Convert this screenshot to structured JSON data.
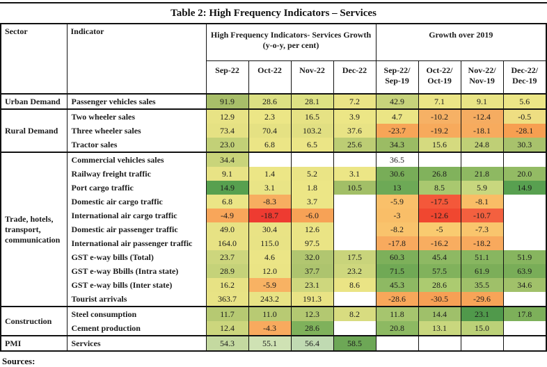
{
  "title": "Table 2: High Frequency Indicators – Services",
  "sources_label": "Sources:",
  "table": {
    "col_headers": {
      "sector": "Sector",
      "indicator": "Indicator",
      "group1_line1": "High Frequency Indicators- Services Growth",
      "group1_line2": "(y-o-y, per cent)",
      "group2": "Growth over 2019",
      "months": [
        "Sep-22",
        "Oct-22",
        "Nov-22",
        "Dec-22"
      ],
      "growth_cols": [
        [
          "Sep-22/",
          "Sep-19"
        ],
        [
          "Oct-22/",
          "Oct-19"
        ],
        [
          "Nov-22/",
          "Nov-19"
        ],
        [
          "Dec-22/",
          "Dec-19"
        ]
      ]
    },
    "groups": [
      {
        "sector": "Urban Demand",
        "rows": [
          {
            "indicator": "Passenger vehicles sales",
            "cells": [
              {
                "v": "91.9",
                "c": "#a8be69"
              },
              {
                "v": "28.6",
                "c": "#dce083"
              },
              {
                "v": "28.1",
                "c": "#dde183"
              },
              {
                "v": "7.2",
                "c": "#eae486"
              },
              {
                "v": "42.9",
                "c": "#c7d37b"
              },
              {
                "v": "7.1",
                "c": "#ebe586"
              },
              {
                "v": "9.1",
                "c": "#e9e485"
              },
              {
                "v": "5.6",
                "c": "#ece686"
              }
            ]
          }
        ]
      },
      {
        "sector": "Rural Demand",
        "rows": [
          {
            "indicator": "Two wheeler sales",
            "cells": [
              {
                "v": "12.9",
                "c": "#e8e385"
              },
              {
                "v": "2.3",
                "c": "#ece686"
              },
              {
                "v": "16.5",
                "c": "#e6e284"
              },
              {
                "v": "3.9",
                "c": "#ece686"
              },
              {
                "v": "4.7",
                "c": "#ebe585"
              },
              {
                "v": "-10.2",
                "c": "#f6b165"
              },
              {
                "v": "-12.4",
                "c": "#f5ac61"
              },
              {
                "v": "-0.5",
                "c": "#eede82"
              }
            ]
          },
          {
            "indicator": "Three wheeler sales",
            "cells": [
              {
                "v": "73.4",
                "c": "#e5e183"
              },
              {
                "v": "70.4",
                "c": "#e5e183"
              },
              {
                "v": "103.2",
                "c": "#e1df82"
              },
              {
                "v": "37.6",
                "c": "#e8e385"
              },
              {
                "v": "-23.7",
                "c": "#f7a557"
              },
              {
                "v": "-19.2",
                "c": "#f7aa5c"
              },
              {
                "v": "-18.1",
                "c": "#f7ab5e"
              },
              {
                "v": "-28.1",
                "c": "#f79f51"
              }
            ]
          },
          {
            "indicator": "Tractor sales",
            "cells": [
              {
                "v": "23.0",
                "c": "#c2d077"
              },
              {
                "v": "6.8",
                "c": "#ebe586"
              },
              {
                "v": "6.5",
                "c": "#ebe586"
              },
              {
                "v": "25.6",
                "c": "#bccd74"
              },
              {
                "v": "34.3",
                "c": "#9bbc64"
              },
              {
                "v": "15.6",
                "c": "#d5da7f"
              },
              {
                "v": "24.8",
                "c": "#bfcf76"
              },
              {
                "v": "30.3",
                "c": "#a8c26c"
              }
            ]
          }
        ]
      },
      {
        "sector": "Trade, hotels, transport, communication",
        "rows": [
          {
            "indicator": "Commercial vehicles sales",
            "cells": [
              {
                "v": "34.4",
                "c": "#c9d47a"
              },
              {
                "v": "",
                "c": ""
              },
              {
                "v": "",
                "c": ""
              },
              {
                "v": "",
                "c": ""
              },
              {
                "v": "36.5",
                "c": ""
              },
              {
                "v": "",
                "c": ""
              },
              {
                "v": "",
                "c": ""
              },
              {
                "v": "",
                "c": ""
              }
            ]
          },
          {
            "indicator": "Railway freight traffic",
            "cells": [
              {
                "v": "9.1",
                "c": "#e8e385"
              },
              {
                "v": "1.4",
                "c": "#ece686"
              },
              {
                "v": "5.2",
                "c": "#eae485"
              },
              {
                "v": "3.1",
                "c": "#ece686"
              },
              {
                "v": "30.6",
                "c": "#78ad58"
              },
              {
                "v": "26.8",
                "c": "#81b25c"
              },
              {
                "v": "21.8",
                "c": "#8eb962"
              },
              {
                "v": "20.0",
                "c": "#93bb64"
              }
            ]
          },
          {
            "indicator": "Port cargo traffic",
            "cells": [
              {
                "v": "14.9",
                "c": "#57a04f"
              },
              {
                "v": "3.1",
                "c": "#e9e486"
              },
              {
                "v": "1.8",
                "c": "#ece686"
              },
              {
                "v": "10.5",
                "c": "#a2bf67"
              },
              {
                "v": "13",
                "c": "#6da956"
              },
              {
                "v": "8.5",
                "c": "#a9c86f"
              },
              {
                "v": "5.9",
                "c": "#c8d77e"
              },
              {
                "v": "14.9",
                "c": "#58a050"
              }
            ]
          },
          {
            "indicator": "Domestic air cargo traffic",
            "cells": [
              {
                "v": "6.8",
                "c": "#ebe586"
              },
              {
                "v": "-8.3",
                "c": "#f7ae60"
              },
              {
                "v": "3.7",
                "c": "#ece686"
              },
              {
                "v": "",
                "c": ""
              },
              {
                "v": "-5.9",
                "c": "#f9c06a"
              },
              {
                "v": "-17.5",
                "c": "#f4583a"
              },
              {
                "v": "-8.1",
                "c": "#f9bd66"
              },
              {
                "v": "",
                "c": ""
              }
            ]
          },
          {
            "indicator": "International air cargo traffic",
            "cells": [
              {
                "v": "-4.9",
                "c": "#f8a65a"
              },
              {
                "v": "-18.7",
                "c": "#ee3b31"
              },
              {
                "v": "-6.0",
                "c": "#f7a256"
              },
              {
                "v": "",
                "c": ""
              },
              {
                "v": "-3",
                "c": "#f9be68"
              },
              {
                "v": "-12.6",
                "c": "#f04730"
              },
              {
                "v": "-10.7",
                "c": "#f3603f"
              },
              {
                "v": "",
                "c": ""
              }
            ]
          },
          {
            "indicator": "Domestic air passenger traffic",
            "cells": [
              {
                "v": "49.0",
                "c": "#e7e284"
              },
              {
                "v": "30.4",
                "c": "#e9e385"
              },
              {
                "v": "12.6",
                "c": "#eae485"
              },
              {
                "v": "",
                "c": ""
              },
              {
                "v": "-8.2",
                "c": "#f9c36c"
              },
              {
                "v": "-5",
                "c": "#f9cb70"
              },
              {
                "v": "-7.3",
                "c": "#f9c56d"
              },
              {
                "v": "",
                "c": ""
              }
            ]
          },
          {
            "indicator": "International air passenger traffic",
            "cells": [
              {
                "v": "164.0",
                "c": "#e7e284"
              },
              {
                "v": "115.0",
                "c": "#e8e385"
              },
              {
                "v": "97.5",
                "c": "#eae485"
              },
              {
                "v": "",
                "c": ""
              },
              {
                "v": "-17.8",
                "c": "#f8aa5e"
              },
              {
                "v": "-16.2",
                "c": "#f8ad60"
              },
              {
                "v": "-18.2",
                "c": "#f8a95d"
              },
              {
                "v": "",
                "c": ""
              }
            ]
          },
          {
            "indicator": "GST e-way bills (Total)",
            "cells": [
              {
                "v": "23.7",
                "c": "#cdd67d"
              },
              {
                "v": "4.6",
                "c": "#ebe586"
              },
              {
                "v": "32.0",
                "c": "#b1c670"
              },
              {
                "v": "17.5",
                "c": "#c9d47b"
              },
              {
                "v": "60.3",
                "c": "#7db05a"
              },
              {
                "v": "45.4",
                "c": "#8eb963"
              },
              {
                "v": "51.1",
                "c": "#88b660"
              },
              {
                "v": "51.9",
                "c": "#87b55f"
              }
            ]
          },
          {
            "indicator": "GST e-way Bbills (Intra state)",
            "cells": [
              {
                "v": "28.9",
                "c": "#c5d279"
              },
              {
                "v": "12.0",
                "c": "#eae485"
              },
              {
                "v": "37.7",
                "c": "#adc46e"
              },
              {
                "v": "23.2",
                "c": "#ced77d"
              },
              {
                "v": "71.5",
                "c": "#70a955"
              },
              {
                "v": "57.5",
                "c": "#81b25c"
              },
              {
                "v": "61.9",
                "c": "#7cae59"
              },
              {
                "v": "63.9",
                "c": "#79ad58"
              }
            ]
          },
          {
            "indicator": "GST e-way bills (Inter state)",
            "cells": [
              {
                "v": "16.2",
                "c": "#e7e284"
              },
              {
                "v": "-5.9",
                "c": "#f8b263"
              },
              {
                "v": "23.1",
                "c": "#ced77d"
              },
              {
                "v": "8.6",
                "c": "#eae485"
              },
              {
                "v": "45.3",
                "c": "#8eb963"
              },
              {
                "v": "28.6",
                "c": "#accb70"
              },
              {
                "v": "35.5",
                "c": "#9fc069"
              },
              {
                "v": "34.6",
                "c": "#a1c16a"
              }
            ]
          },
          {
            "indicator": "Tourist arrivals",
            "cells": [
              {
                "v": "363.7",
                "c": "#e8e385"
              },
              {
                "v": "243.2",
                "c": "#e8e385"
              },
              {
                "v": "191.3",
                "c": "#e9e385"
              },
              {
                "v": "",
                "c": ""
              },
              {
                "v": "-28.6",
                "c": "#f8a75a"
              },
              {
                "v": "-30.5",
                "c": "#f7a055"
              },
              {
                "v": "-29.6",
                "c": "#f7a458"
              },
              {
                "v": "",
                "c": ""
              }
            ]
          }
        ]
      },
      {
        "sector": "Construction",
        "rows": [
          {
            "indicator": "Steel consumption",
            "cells": [
              {
                "v": "11.7",
                "c": "#b6c972"
              },
              {
                "v": "11.0",
                "c": "#b8ca73"
              },
              {
                "v": "12.3",
                "c": "#b3c871"
              },
              {
                "v": "8.2",
                "c": "#d8dc80"
              },
              {
                "v": "11.8",
                "c": "#a6c56e"
              },
              {
                "v": "14.4",
                "c": "#9fc06a"
              },
              {
                "v": "23.1",
                "c": "#50994b"
              },
              {
                "v": "17.8",
                "c": "#7db05a"
              }
            ]
          },
          {
            "indicator": "Cement production",
            "cells": [
              {
                "v": "12.4",
                "c": "#ccd67d"
              },
              {
                "v": "-4.3",
                "c": "#f8aa5e"
              },
              {
                "v": "28.6",
                "c": "#7fb15b"
              },
              {
                "v": "",
                "c": ""
              },
              {
                "v": "20.8",
                "c": "#8db962"
              },
              {
                "v": "13.1",
                "c": "#c9d77e"
              },
              {
                "v": "15.0",
                "c": "#bcd178"
              },
              {
                "v": "",
                "c": ""
              }
            ]
          }
        ]
      },
      {
        "sector": "PMI",
        "rows": [
          {
            "indicator": "Services",
            "cells": [
              {
                "v": "54.3",
                "c": "#c4d9a0"
              },
              {
                "v": "55.1",
                "c": "#cfe2b4"
              },
              {
                "v": "56.4",
                "c": "#c0dab2"
              },
              {
                "v": "58.5",
                "c": "#6da756"
              },
              {
                "v": "",
                "c": ""
              },
              {
                "v": "",
                "c": ""
              },
              {
                "v": "",
                "c": ""
              },
              {
                "v": "",
                "c": ""
              }
            ]
          }
        ]
      }
    ]
  }
}
